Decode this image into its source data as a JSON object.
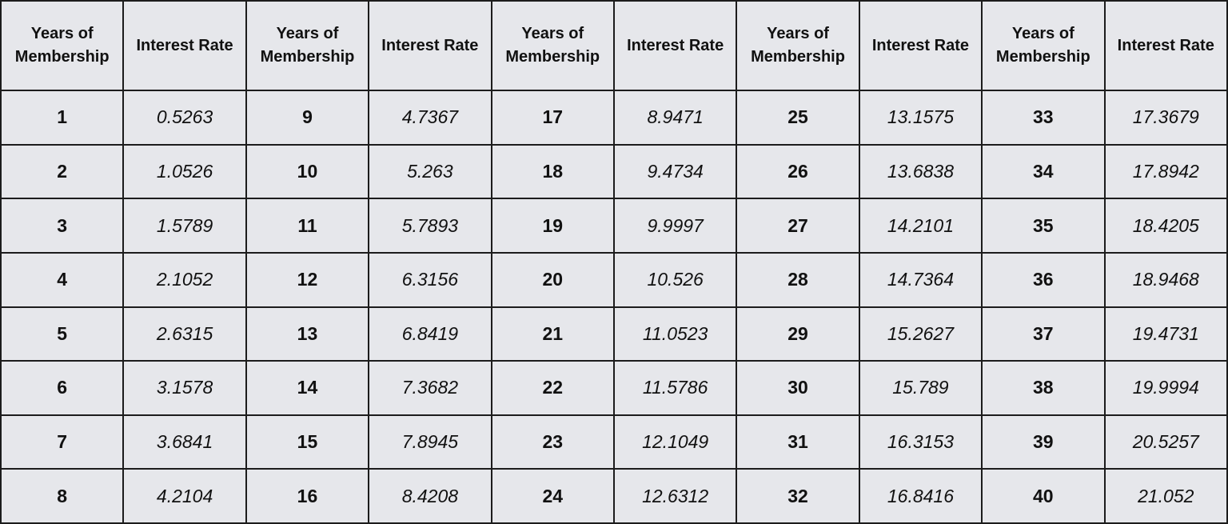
{
  "table": {
    "header": [
      "Years of Membership",
      "Interest Rate",
      "Years of Membership",
      "Interest Rate",
      "Years of Membership",
      "Interest Rate",
      "Years of Membership",
      "Interest Rate",
      "Years of Membership",
      "Interest Rate"
    ],
    "rows": [
      [
        "1",
        "0.5263",
        "9",
        "4.7367",
        "17",
        "8.9471",
        "25",
        "13.1575",
        "33",
        "17.3679"
      ],
      [
        "2",
        "1.0526",
        "10",
        "5.263",
        "18",
        "9.4734",
        "26",
        "13.6838",
        "34",
        "17.8942"
      ],
      [
        "3",
        "1.5789",
        "11",
        "5.7893",
        "19",
        "9.9997",
        "27",
        "14.2101",
        "35",
        "18.4205"
      ],
      [
        "4",
        "2.1052",
        "12",
        "6.3156",
        "20",
        "10.526",
        "28",
        "14.7364",
        "36",
        "18.9468"
      ],
      [
        "5",
        "2.6315",
        "13",
        "6.8419",
        "21",
        "11.0523",
        "29",
        "15.2627",
        "37",
        "19.4731"
      ],
      [
        "6",
        "3.1578",
        "14",
        "7.3682",
        "22",
        "11.5786",
        "30",
        "15.789",
        "38",
        "19.9994"
      ],
      [
        "7",
        "3.6841",
        "15",
        "7.8945",
        "23",
        "12.1049",
        "31",
        "16.3153",
        "39",
        "20.5257"
      ],
      [
        "8",
        "4.2104",
        "16",
        "8.4208",
        "24",
        "12.6312",
        "32",
        "16.8416",
        "40",
        "21.052"
      ]
    ]
  }
}
